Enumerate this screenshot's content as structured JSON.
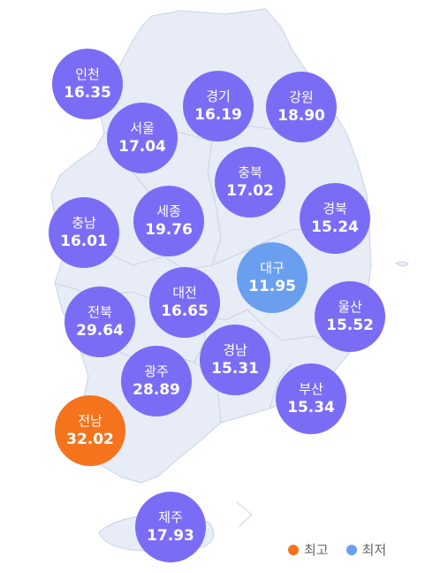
{
  "colors": {
    "normal": "#7b6cf6",
    "highest": "#f4731c",
    "lowest": "#6a9ff0",
    "land": "#e7ecf6",
    "border": "#c9d3e6"
  },
  "regions": [
    {
      "name": "인천",
      "value": "16.35",
      "kind": "normal"
    },
    {
      "name": "경기",
      "value": "16.19",
      "kind": "normal"
    },
    {
      "name": "강원",
      "value": "18.90",
      "kind": "normal"
    },
    {
      "name": "서울",
      "value": "17.04",
      "kind": "normal"
    },
    {
      "name": "충북",
      "value": "17.02",
      "kind": "normal"
    },
    {
      "name": "충남",
      "value": "16.01",
      "kind": "normal"
    },
    {
      "name": "세종",
      "value": "19.76",
      "kind": "normal"
    },
    {
      "name": "경북",
      "value": "15.24",
      "kind": "normal"
    },
    {
      "name": "대구",
      "value": "11.95",
      "kind": "lowest"
    },
    {
      "name": "대전",
      "value": "16.65",
      "kind": "normal"
    },
    {
      "name": "전북",
      "value": "29.64",
      "kind": "normal"
    },
    {
      "name": "울산",
      "value": "15.52",
      "kind": "normal"
    },
    {
      "name": "경남",
      "value": "15.31",
      "kind": "normal"
    },
    {
      "name": "광주",
      "value": "28.89",
      "kind": "normal"
    },
    {
      "name": "부산",
      "value": "15.34",
      "kind": "normal"
    },
    {
      "name": "전남",
      "value": "32.02",
      "kind": "highest"
    },
    {
      "name": "제주",
      "value": "17.93",
      "kind": "normal"
    }
  ],
  "legend": {
    "highest_label": "최고",
    "lowest_label": "최저"
  }
}
